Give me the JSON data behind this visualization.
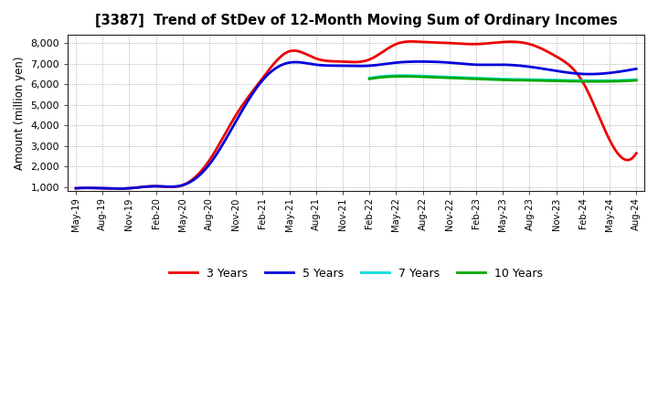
{
  "title": "[3387]  Trend of StDev of 12-Month Moving Sum of Ordinary Incomes",
  "ylabel": "Amount (million yen)",
  "ylim": [
    800,
    8400
  ],
  "yticks": [
    1000,
    2000,
    3000,
    4000,
    5000,
    6000,
    7000,
    8000
  ],
  "background_color": "#ffffff",
  "plot_bg_color": "#f0f0f0",
  "grid_color": "#555555",
  "x_labels": [
    "May-19",
    "Aug-19",
    "Nov-19",
    "Feb-20",
    "May-20",
    "Aug-20",
    "Nov-20",
    "Feb-21",
    "May-21",
    "Aug-21",
    "Nov-21",
    "Feb-22",
    "May-22",
    "Aug-22",
    "Nov-22",
    "Feb-23",
    "May-23",
    "Aug-23",
    "Nov-23",
    "Feb-24",
    "May-24",
    "Aug-24"
  ],
  "series": {
    "3 Years": {
      "color": "#ee0000",
      "linewidth": 2.0,
      "data_x": [
        0,
        1,
        2,
        3,
        4,
        5,
        6,
        7,
        8,
        9,
        10,
        11,
        12,
        13,
        14,
        15,
        16,
        17,
        18,
        19,
        20,
        21
      ],
      "data_y": [
        950,
        950,
        950,
        1050,
        1100,
        2300,
        4500,
        6300,
        7600,
        7250,
        7100,
        7200,
        7950,
        8050,
        8000,
        7950,
        8050,
        7950,
        7350,
        6100,
        3300,
        2650
      ]
    },
    "5 Years": {
      "color": "#0000dd",
      "linewidth": 2.0,
      "data_x": [
        0,
        1,
        2,
        3,
        4,
        5,
        6,
        7,
        8,
        9,
        10,
        11,
        12,
        13,
        14,
        15,
        16,
        17,
        18,
        19,
        20,
        21
      ],
      "data_y": [
        950,
        950,
        950,
        1050,
        1100,
        2100,
        4200,
        6200,
        7050,
        6950,
        6900,
        6900,
        7050,
        7100,
        7050,
        6950,
        6950,
        6850,
        6650,
        6500,
        6550,
        6750
      ]
    },
    "7 Years": {
      "color": "#00dddd",
      "linewidth": 2.0,
      "data_x": [
        11,
        12,
        13,
        14,
        15,
        16,
        17,
        18,
        19,
        20,
        21
      ],
      "data_y": [
        6300,
        6420,
        6400,
        6350,
        6300,
        6250,
        6230,
        6200,
        6180,
        6180,
        6220
      ]
    },
    "10 Years": {
      "color": "#00aa00",
      "linewidth": 2.0,
      "data_x": [
        11,
        12,
        13,
        14,
        15,
        16,
        17,
        18,
        19,
        20,
        21
      ],
      "data_y": [
        6260,
        6380,
        6360,
        6310,
        6260,
        6210,
        6190,
        6160,
        6140,
        6140,
        6190
      ]
    }
  },
  "legend": {
    "labels": [
      "3 Years",
      "5 Years",
      "7 Years",
      "10 Years"
    ],
    "colors": [
      "#ee0000",
      "#0000dd",
      "#00dddd",
      "#00aa00"
    ],
    "ncol": 4
  }
}
